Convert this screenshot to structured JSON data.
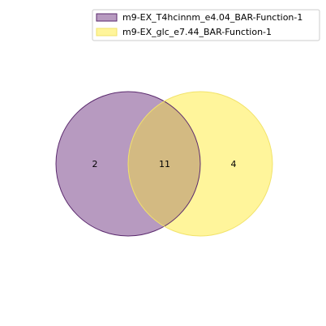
{
  "venn": {
    "sets": [
      {
        "name": "m9-EX_T4hcinnm_e4.04_BAR-Function-1",
        "color": "#b79ac0",
        "edge": "#5b2a6e"
      },
      {
        "name": "m9-EX_glc_e7.44_BAR-Function-1",
        "color": "#fff59b",
        "edge": "#f2e36a"
      }
    ],
    "overlap_color": "#d3ba82",
    "counts": {
      "only_a": "2",
      "both": "11",
      "only_b": "4"
    }
  }
}
